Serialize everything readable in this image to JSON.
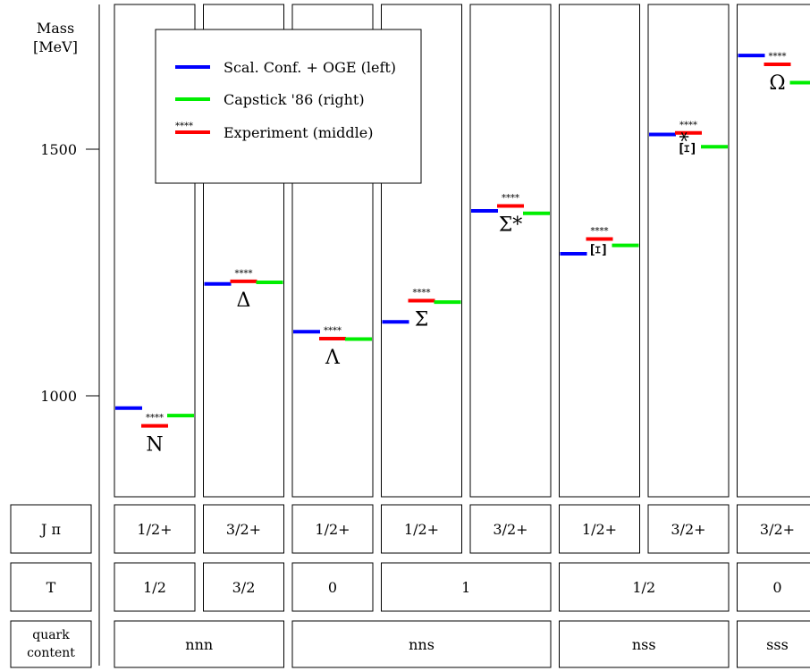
{
  "chart_data": {
    "type": "scatter",
    "title": "",
    "ylabel": "Mass [MeV]",
    "yticks": [
      {
        "value": 1000,
        "label": "1000"
      },
      {
        "value": 1500,
        "label": "1500"
      }
    ],
    "ylim": [
      800,
      1800
    ],
    "legend": {
      "placement": "top-left",
      "entries": [
        {
          "key": "model",
          "label": "Scal. Conf. + OGE (left)",
          "color": "#0000ff"
        },
        {
          "key": "capstick",
          "label": "Capstick '86 (right)",
          "color": "#00ee00"
        },
        {
          "key": "experiment",
          "label": "Experiment  (middle)",
          "color": "#ff0000",
          "stars": "****"
        }
      ]
    },
    "particles": [
      {
        "name": "N",
        "jp": "1/2+",
        "model": 975,
        "experiment": 939,
        "capstick": 960,
        "stars": "****"
      },
      {
        "name": "Δ",
        "jp": "3/2+",
        "model": 1227,
        "experiment": 1232,
        "capstick": 1230,
        "stars": "****"
      },
      {
        "name": "Λ",
        "jp": "1/2+",
        "model": 1130,
        "experiment": 1116,
        "capstick": 1115,
        "stars": "****"
      },
      {
        "name": "Σ",
        "jp": "1/2+",
        "model": 1150,
        "experiment": 1193,
        "capstick": 1190,
        "stars": "****"
      },
      {
        "name": "Σ*",
        "jp": "3/2+",
        "model": 1375,
        "experiment": 1385,
        "capstick": 1370,
        "stars": "****"
      },
      {
        "name": "Ξ",
        "jp": "1/2+",
        "model": 1288,
        "experiment": 1318,
        "capstick": 1305,
        "stars": "****"
      },
      {
        "name": "Ξ*",
        "jp": "3/2+",
        "model": 1530,
        "experiment": 1533,
        "capstick": 1505,
        "stars": "****"
      },
      {
        "name": "Ω",
        "jp": "3/2+",
        "model": 1690,
        "experiment": 1672,
        "capstick": 1635,
        "stars": "****"
      }
    ],
    "rows": {
      "jp_label": "J π",
      "t_label": "T",
      "quark_label_line1": "quark",
      "quark_label_line2": "content",
      "t_groups": [
        {
          "label": "1/2",
          "span": 1
        },
        {
          "label": "3/2",
          "span": 1
        },
        {
          "label": "0",
          "span": 1
        },
        {
          "label": "1",
          "span": 2
        },
        {
          "label": "1/2",
          "span": 2
        },
        {
          "label": "0",
          "span": 1
        }
      ],
      "quark_groups": [
        {
          "label": "nnn",
          "span": 2
        },
        {
          "label": "nns",
          "span": 3
        },
        {
          "label": "nss",
          "span": 2
        },
        {
          "label": "sss",
          "span": 1
        }
      ]
    }
  }
}
